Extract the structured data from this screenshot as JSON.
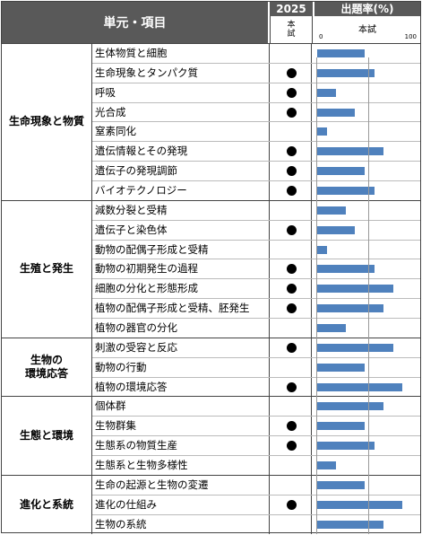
{
  "header": {
    "unit_label": "単元・項目",
    "year": "2025",
    "honshi_label": "本\n試",
    "rate_title": "出題率(%)",
    "rate_sub": "本試",
    "axis_min": "0",
    "axis_max": "100"
  },
  "categories": [
    {
      "name": "生命現象と物質",
      "rows": 8
    },
    {
      "name": "生殖と発生",
      "rows": 7
    },
    {
      "name": "生物の\n環境応答",
      "rows": 3
    },
    {
      "name": "生態と環境",
      "rows": 4
    },
    {
      "name": "進化と系統",
      "rows": 3
    }
  ],
  "rows": [
    {
      "label": "生体物質と細胞",
      "dot": false,
      "rate": 50
    },
    {
      "label": "生命現象とタンパク質",
      "dot": true,
      "rate": 60
    },
    {
      "label": "呼吸",
      "dot": true,
      "rate": 20
    },
    {
      "label": "光合成",
      "dot": true,
      "rate": 40
    },
    {
      "label": "窒素同化",
      "dot": false,
      "rate": 10
    },
    {
      "label": "遺伝情報とその発現",
      "dot": true,
      "rate": 70
    },
    {
      "label": "遺伝子の発現調節",
      "dot": true,
      "rate": 50
    },
    {
      "label": "バイオテクノロジー",
      "dot": true,
      "rate": 60
    },
    {
      "label": "減数分裂と受精",
      "dot": false,
      "rate": 30
    },
    {
      "label": "遺伝子と染色体",
      "dot": true,
      "rate": 40
    },
    {
      "label": "動物の配偶子形成と受精",
      "dot": false,
      "rate": 10
    },
    {
      "label": "動物の初期発生の過程",
      "dot": true,
      "rate": 60
    },
    {
      "label": "細胞の分化と形態形成",
      "dot": true,
      "rate": 80
    },
    {
      "label": "植物の配偶子形成と受精、胚発生",
      "dot": true,
      "rate": 70
    },
    {
      "label": "植物の器官の分化",
      "dot": false,
      "rate": 30
    },
    {
      "label": "刺激の受容と反応",
      "dot": true,
      "rate": 80
    },
    {
      "label": "動物の行動",
      "dot": false,
      "rate": 50
    },
    {
      "label": "植物の環境応答",
      "dot": true,
      "rate": 90
    },
    {
      "label": "個体群",
      "dot": false,
      "rate": 70
    },
    {
      "label": "生物群集",
      "dot": true,
      "rate": 50
    },
    {
      "label": "生態系の物質生産",
      "dot": true,
      "rate": 60
    },
    {
      "label": "生態系と生物多様性",
      "dot": false,
      "rate": 20
    },
    {
      "label": "生命の起源と生物の変遷",
      "dot": false,
      "rate": 50
    },
    {
      "label": "進化の仕組み",
      "dot": true,
      "rate": 90
    },
    {
      "label": "生物の系統",
      "dot": false,
      "rate": 70
    }
  ]
}
